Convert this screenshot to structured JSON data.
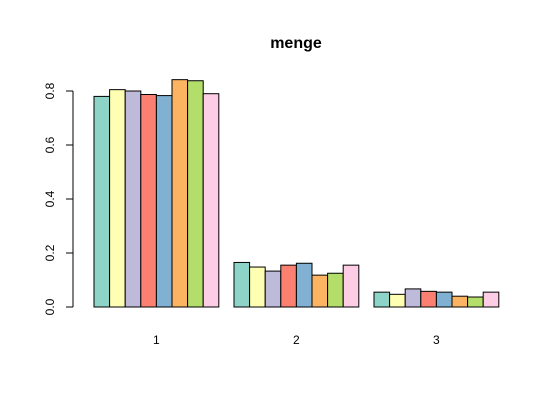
{
  "chart_data": {
    "type": "bar",
    "title": "menge",
    "xlabel": "",
    "ylabel": "",
    "categories": [
      "1",
      "2",
      "3"
    ],
    "series": [
      {
        "color": "#8DD3C7",
        "values": [
          0.78,
          0.165,
          0.055
        ]
      },
      {
        "color": "#FFFFB3",
        "values": [
          0.805,
          0.148,
          0.047
        ]
      },
      {
        "color": "#BEBADA",
        "values": [
          0.8,
          0.133,
          0.067
        ]
      },
      {
        "color": "#FB8072",
        "values": [
          0.787,
          0.155,
          0.058
        ]
      },
      {
        "color": "#80B1D3",
        "values": [
          0.783,
          0.162,
          0.055
        ]
      },
      {
        "color": "#FDB462",
        "values": [
          0.842,
          0.118,
          0.04
        ]
      },
      {
        "color": "#B3DE69",
        "values": [
          0.838,
          0.125,
          0.037
        ]
      },
      {
        "color": "#FCCDE5",
        "values": [
          0.79,
          0.155,
          0.055
        ]
      }
    ],
    "ylim": [
      0,
      0.85
    ],
    "yticks": [
      0.0,
      0.2,
      0.4,
      0.6,
      0.8
    ],
    "ytick_labels": [
      "0.0",
      "0.2",
      "0.4",
      "0.6",
      "0.8"
    ],
    "grid": false,
    "legend": "none"
  }
}
